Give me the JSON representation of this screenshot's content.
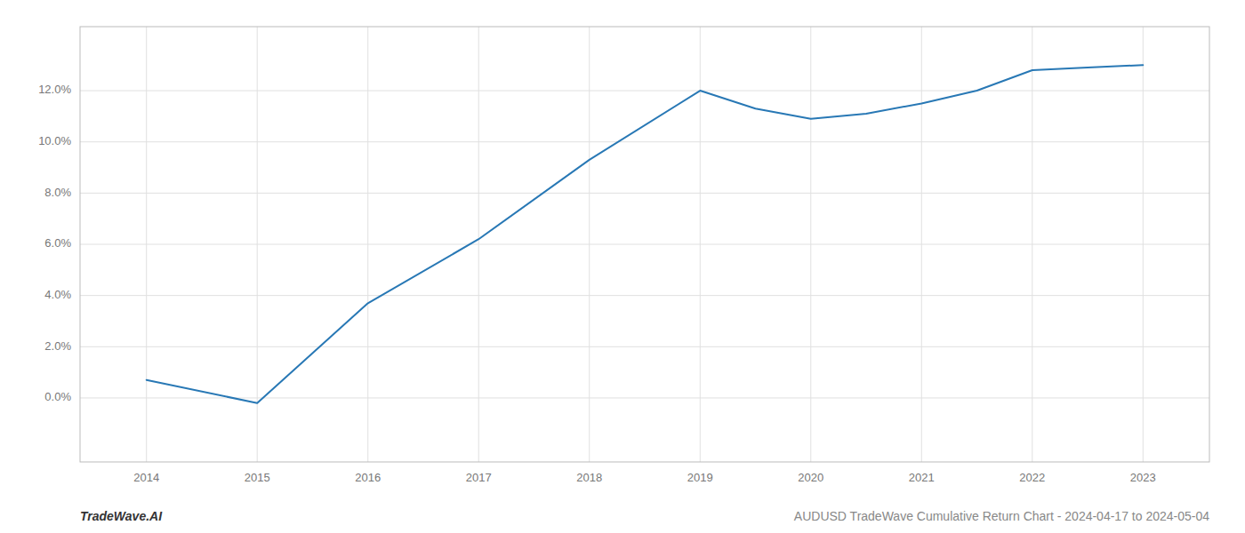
{
  "chart_data": {
    "type": "line",
    "x": [
      2014,
      2015,
      2016,
      2017,
      2018,
      2019,
      2019.5,
      2020,
      2020.5,
      2021,
      2021.5,
      2022,
      2022.5,
      2023
    ],
    "values": [
      0.007,
      -0.002,
      0.037,
      0.062,
      0.093,
      0.12,
      0.113,
      0.109,
      0.111,
      0.115,
      0.12,
      0.128,
      0.129,
      0.13
    ],
    "color": "#2878b5",
    "xlim": [
      2013.4,
      2023.6
    ],
    "ylim": [
      -0.025,
      0.145
    ],
    "xticks": [
      2014,
      2015,
      2016,
      2017,
      2018,
      2019,
      2020,
      2021,
      2022,
      2023
    ],
    "yticks": [
      {
        "value": 0.0,
        "label": "0.0%"
      },
      {
        "value": 0.02,
        "label": "2.0%"
      },
      {
        "value": 0.04,
        "label": "4.0%"
      },
      {
        "value": 0.06,
        "label": "6.0%"
      },
      {
        "value": 0.08,
        "label": "8.0%"
      },
      {
        "value": 0.1,
        "label": "10.0%"
      },
      {
        "value": 0.12,
        "label": "12.0%"
      }
    ],
    "grid": true,
    "annotations": [
      "TradeWave.AI",
      "AUDUSD TradeWave Cumulative Return Chart - 2024-04-17 to 2024-05-04"
    ]
  }
}
